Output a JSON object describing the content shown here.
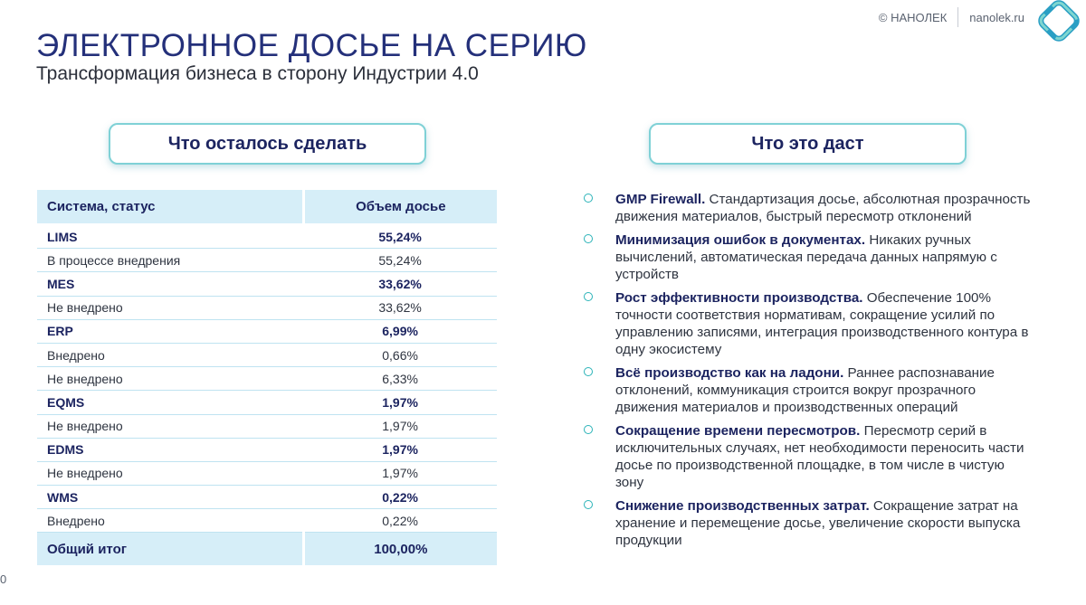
{
  "header": {
    "title": "ЭЛЕКТРОННОЕ ДОСЬЕ НА СЕРИЮ",
    "subtitle": "Трансформация бизнеса в сторону Индустрии 4.0",
    "copyright": "© НАНОЛЕК",
    "site": "nanolek.ru"
  },
  "left_panel": {
    "heading": "Что осталось сделать",
    "table": {
      "columns": [
        "Система, статус",
        "Объем досье"
      ],
      "rows": [
        {
          "label": "LIMS",
          "value": "55,24%",
          "group": true
        },
        {
          "label": "В процессе внедрения",
          "value": "55,24%",
          "group": false
        },
        {
          "label": "MES",
          "value": "33,62%",
          "group": true
        },
        {
          "label": "Не внедрено",
          "value": "33,62%",
          "group": false
        },
        {
          "label": "ERP",
          "value": "6,99%",
          "group": true
        },
        {
          "label": "Внедрено",
          "value": "0,66%",
          "group": false
        },
        {
          "label": "Не внедрено",
          "value": "6,33%",
          "group": false
        },
        {
          "label": "EQMS",
          "value": "1,97%",
          "group": true
        },
        {
          "label": "Не внедрено",
          "value": "1,97%",
          "group": false
        },
        {
          "label": "EDMS",
          "value": "1,97%",
          "group": true
        },
        {
          "label": "Не внедрено",
          "value": "1,97%",
          "group": false
        },
        {
          "label": "WMS",
          "value": "0,22%",
          "group": true
        },
        {
          "label": "Внедрено",
          "value": "0,22%",
          "group": false
        }
      ],
      "total": {
        "label": "Общий итог",
        "value": "100,00%"
      }
    }
  },
  "right_panel": {
    "heading": "Что это даст",
    "items": [
      {
        "title": "GMP Firewall.",
        "text": " Стандартизация досье, абсолютная прозрачность движения материалов, быстрый пересмотр отклонений"
      },
      {
        "title": "Минимизация ошибок в документах.",
        "text": " Никаких ручных вычислений, автоматическая передача данных напрямую с устройств"
      },
      {
        "title": "Рост эффективности производства.",
        "text": " Обеспечение 100% точности соответствия нормативам, сокращение усилий по управлению записями, интеграция производственного контура в одну экосистему"
      },
      {
        "title": "Всё производство как на ладони.",
        "text": " Раннее распознавание отклонений, коммуникация строится вокруг прозрачного движения материалов и производственных операций"
      },
      {
        "title": "Сокращение времени пересмотров.",
        "text": " Пересмотр серий в исключительных случаях, нет необходимости переносить части досье по производственной площадке, в том числе в чистую зону"
      },
      {
        "title": "Снижение производственных затрат.",
        "text": " Сокращение затрат на хранение и перемещение досье, увеличение скорости выпуска продукции"
      }
    ]
  },
  "footer": {
    "page_number": "0"
  },
  "colors": {
    "title": "#24307a",
    "accent": "#2ab3b8",
    "table_header_bg": "#d6eef8",
    "pill_border": "#7fd1d6"
  }
}
